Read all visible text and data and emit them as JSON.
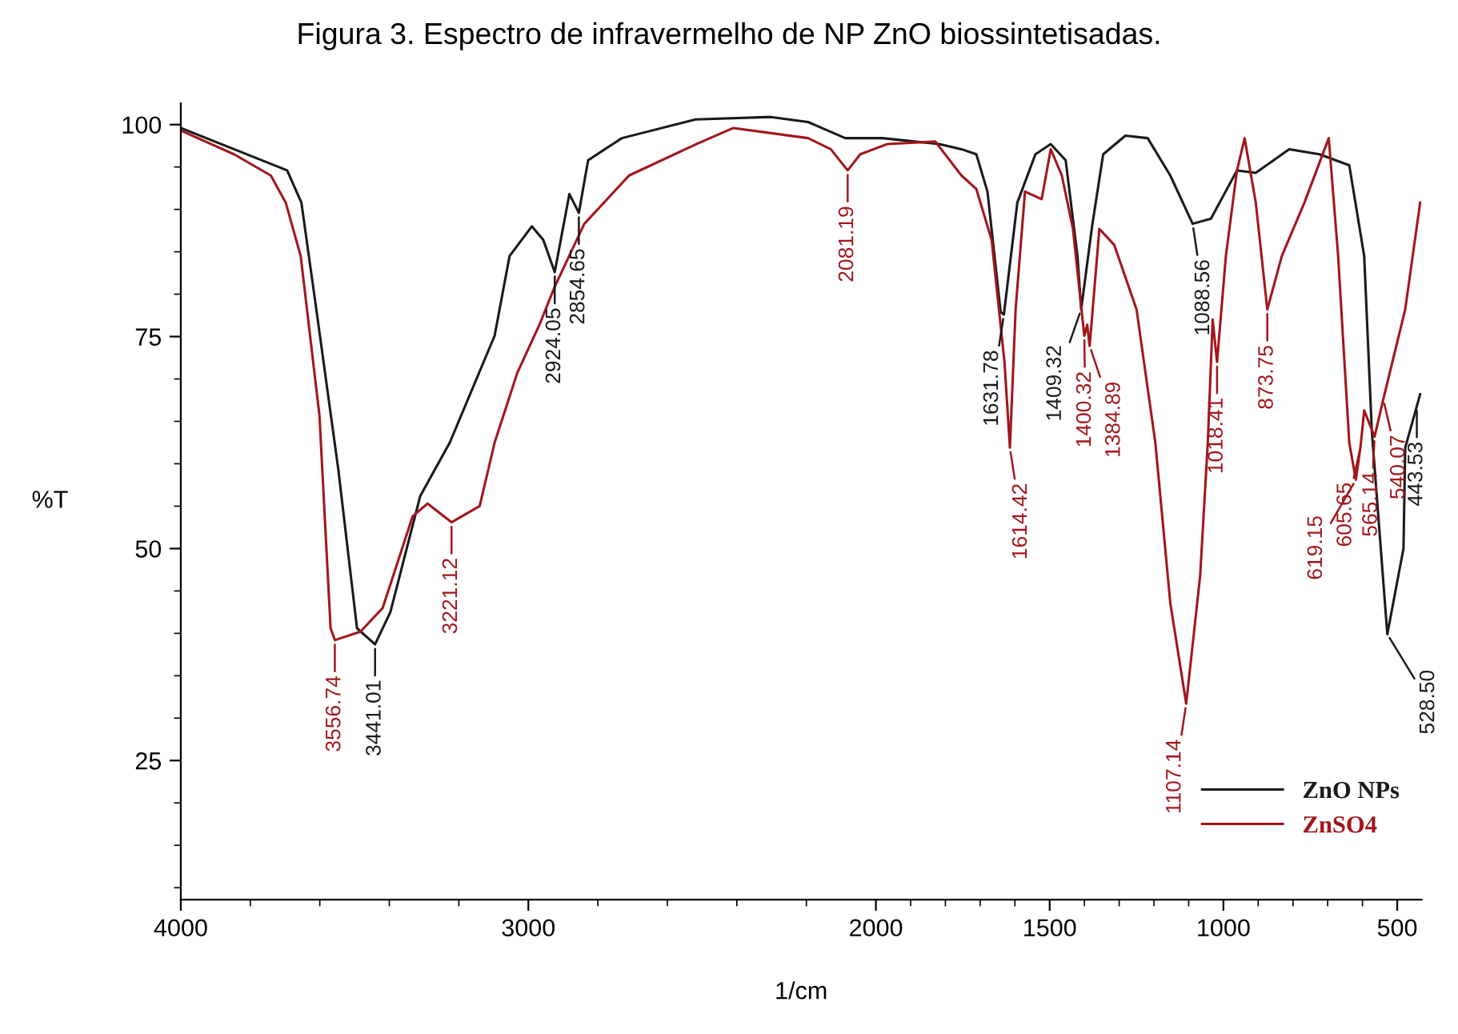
{
  "chart_data": {
    "type": "line",
    "title": "Figura 3. Espectro de infravermelho de NP ZnO biossintetisadas.",
    "xlabel": "1/cm",
    "ylabel": "%T",
    "xlim": [
      4000,
      430
    ],
    "xticks": [
      4000,
      3000,
      2000,
      1500,
      1000,
      500
    ],
    "ylim": [
      8.6,
      102.5
    ],
    "yticks": [
      25,
      50,
      75,
      100
    ],
    "grid": false,
    "legend": "bottom right",
    "marker": "none",
    "line_style": "solid",
    "series": [
      {
        "name": "ZnO NPs",
        "color": "#1a1a1a",
        "x": [
          4000,
          3847,
          3694,
          3653,
          3610,
          3547,
          3493,
          3441.01,
          3397,
          3311,
          3226,
          3097,
          3054,
          2990,
          2957,
          2924.05,
          2882,
          2854.65,
          2828,
          2731,
          2519,
          2302,
          2195,
          2088,
          1981,
          1818,
          1754,
          1711,
          1679,
          1641,
          1631.78,
          1593,
          1541,
          1497,
          1454,
          1420,
          1409.32,
          1378,
          1346,
          1282,
          1218,
          1153,
          1088.56,
          1036,
          961,
          907,
          811,
          724,
          638,
          595,
          573,
          528.5,
          482,
          477,
          443.53,
          434
        ],
        "values": [
          99.6,
          97.1,
          94.6,
          90.8,
          78.2,
          59.4,
          40.6,
          38.7,
          42.5,
          56.2,
          62.5,
          75.1,
          84.5,
          88,
          86.4,
          82.6,
          91.8,
          89.6,
          95.8,
          98.4,
          100.6,
          100.9,
          100.3,
          98.4,
          98.4,
          97.7,
          97.1,
          96.5,
          92.1,
          77.9,
          77.6,
          90.8,
          96.5,
          97.7,
          95.8,
          84.5,
          78.2,
          88,
          96.5,
          98.7,
          98.4,
          94,
          88.3,
          88.9,
          94.6,
          94.3,
          97.1,
          96.5,
          95.2,
          84.5,
          63.8,
          39.9,
          50,
          61.9,
          66.8,
          68.2
        ]
      },
      {
        "name": "ZnSO4",
        "color": "#a3161b",
        "x": [
          4000,
          3847,
          3741,
          3698,
          3655,
          3601,
          3569,
          3556.74,
          3483,
          3419,
          3333,
          3290,
          3221.12,
          3140,
          3097,
          3032,
          2968,
          2925,
          2839,
          2710,
          2517,
          2410,
          2195,
          2130,
          2081.19,
          2045,
          1968,
          1829,
          1754,
          1711,
          1667,
          1630,
          1614.42,
          1598,
          1571,
          1523,
          1497,
          1465,
          1433,
          1400.32,
          1392,
          1384.89,
          1357,
          1314,
          1250,
          1196,
          1153,
          1107.14,
          1067,
          1045,
          1031,
          1018.41,
          993,
          961,
          939,
          907,
          873.75,
          832,
          767,
          697,
          670,
          638,
          619.15,
          605.65,
          595,
          565.14,
          540.07,
          477,
          434
        ],
        "values": [
          99.3,
          96.5,
          94,
          90.8,
          84.5,
          65.7,
          40.6,
          39.2,
          40.2,
          43,
          53.8,
          55.3,
          53.1,
          55,
          62.5,
          70.7,
          76.4,
          80.8,
          88.3,
          94,
          97.7,
          99.6,
          98.4,
          97.1,
          94.6,
          96.5,
          97.7,
          98,
          94,
          92.4,
          86.4,
          72,
          61.9,
          78.2,
          92.1,
          91.2,
          97.1,
          94,
          87.7,
          75.1,
          76.4,
          73.9,
          87.7,
          85.8,
          78.2,
          62.5,
          43.6,
          31.7,
          46.8,
          62.5,
          77,
          72,
          84.5,
          94.6,
          98.4,
          90.8,
          78.2,
          84.5,
          90.8,
          98.4,
          84.5,
          62.5,
          58.1,
          62,
          66.3,
          63.2,
          67.6,
          78.2,
          90.8
        ]
      }
    ],
    "annotations": [
      {
        "text": "3556.74",
        "x": 3556.74,
        "y": 39.2
      },
      {
        "text": "3441.01",
        "x": 3441.01,
        "y": 38.7
      },
      {
        "text": "3221.12",
        "x": 3221.12,
        "y": 53.1
      },
      {
        "text": "2924.05",
        "x": 2924.05,
        "y": 82.6
      },
      {
        "text": "2854.65",
        "x": 2854.65,
        "y": 89.6
      },
      {
        "text": "2081.19",
        "x": 2081.19,
        "y": 94.6
      },
      {
        "text": "1631.78",
        "x": 1631.78,
        "y": 77.6
      },
      {
        "text": "1614.42",
        "x": 1614.42,
        "y": 61.9
      },
      {
        "text": "1409.32",
        "x": 1409.32,
        "y": 78.2
      },
      {
        "text": "1400.32",
        "x": 1400.32,
        "y": 75.1
      },
      {
        "text": "1384.89",
        "x": 1384.89,
        "y": 73.9
      },
      {
        "text": "1107.14",
        "x": 1107.14,
        "y": 31.7
      },
      {
        "text": "1088.56",
        "x": 1088.56,
        "y": 88.3
      },
      {
        "text": "1018.41",
        "x": 1018.41,
        "y": 72
      },
      {
        "text": "873.75",
        "x": 873.75,
        "y": 78.2
      },
      {
        "text": "619.15",
        "x": 619.15,
        "y": 58.1
      },
      {
        "text": "605.65",
        "x": 605.65,
        "y": 62
      },
      {
        "text": "565.14",
        "x": 565.14,
        "y": 63.2
      },
      {
        "text": "540.07",
        "x": 540.07,
        "y": 67.6
      },
      {
        "text": "528.50",
        "x": 528.5,
        "y": 39.9
      },
      {
        "text": "443.53",
        "x": 443.53,
        "y": 66.8
      }
    ]
  }
}
